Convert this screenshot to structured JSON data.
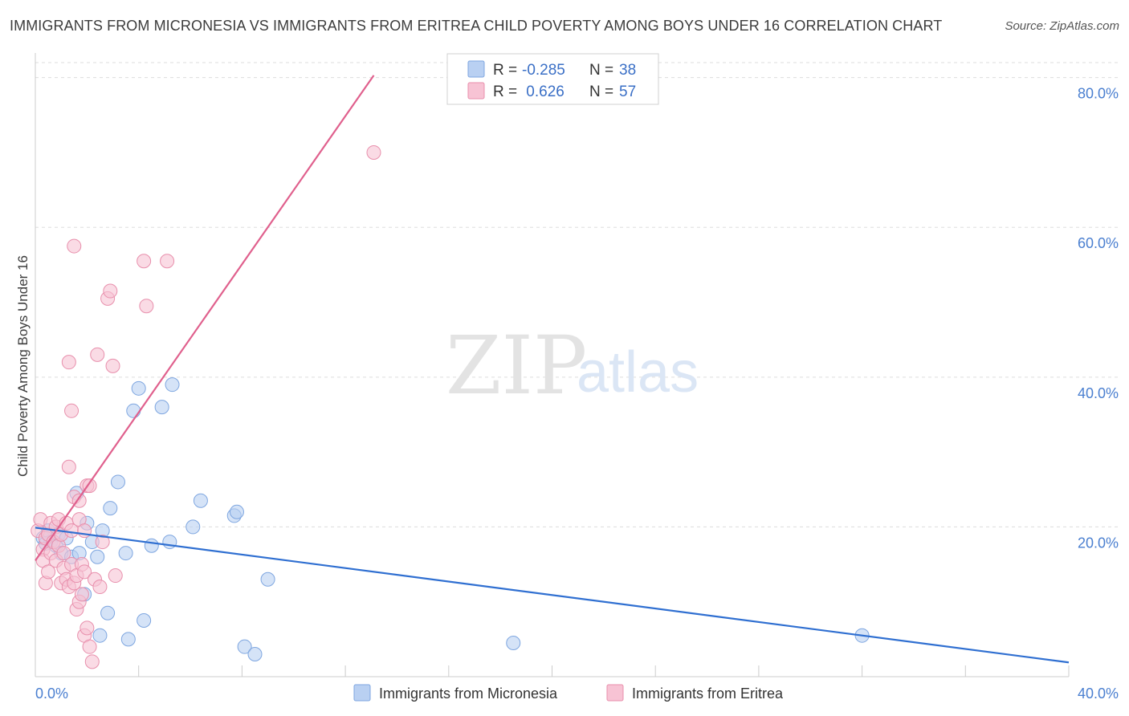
{
  "title": "IMMIGRANTS FROM MICRONESIA VS IMMIGRANTS FROM ERITREA CHILD POVERTY AMONG BOYS UNDER 16 CORRELATION CHART",
  "source": "Source: ZipAtlas.com",
  "watermark": {
    "zip": "ZIP",
    "atlas": "atlas"
  },
  "colors": {
    "micronesia_fill": "#b9d0f2",
    "micronesia_stroke": "#7ea6e0",
    "micronesia_line": "#2f6fd1",
    "eritrea_fill": "#f7c3d4",
    "eritrea_stroke": "#e88fac",
    "eritrea_line": "#e0608d",
    "grid": "#dddddd",
    "tick_label": "#4a7fd0"
  },
  "legend": {
    "rows": [
      {
        "r_label": "R =",
        "r_value": "-0.285",
        "n_label": "N =",
        "n_value": "38"
      },
      {
        "r_label": "R =",
        "r_value": " 0.626",
        "n_label": "N =",
        "n_value": "57"
      }
    ]
  },
  "chart_data": {
    "type": "scatter",
    "xlabel": "",
    "ylabel": "Child Poverty Among Boys Under 16",
    "xlim": [
      0,
      40
    ],
    "ylim": [
      0,
      82
    ],
    "x_tick_labels": [
      {
        "value": 0,
        "label": "0.0%"
      },
      {
        "value": 40,
        "label": "40.0%"
      }
    ],
    "y_tick_labels": [
      {
        "value": 20,
        "label": "20.0%"
      },
      {
        "value": 40,
        "label": "40.0%"
      },
      {
        "value": 60,
        "label": "60.0%"
      },
      {
        "value": 80,
        "label": "80.0%"
      }
    ],
    "grid": true,
    "legend_position": "top-center",
    "series": [
      {
        "name": "Immigrants from Micronesia",
        "points": [
          [
            0.3,
            18.5
          ],
          [
            0.5,
            19.5
          ],
          [
            0.6,
            18.0
          ],
          [
            0.8,
            17.5
          ],
          [
            0.9,
            19.0
          ],
          [
            1.0,
            16.5
          ],
          [
            1.2,
            18.5
          ],
          [
            1.4,
            16.0
          ],
          [
            1.6,
            24.5
          ],
          [
            1.7,
            16.5
          ],
          [
            1.9,
            11.0
          ],
          [
            2.0,
            20.5
          ],
          [
            2.2,
            18.0
          ],
          [
            2.4,
            16.0
          ],
          [
            2.5,
            5.5
          ],
          [
            2.6,
            19.5
          ],
          [
            2.8,
            8.5
          ],
          [
            2.9,
            22.5
          ],
          [
            3.2,
            26.0
          ],
          [
            3.5,
            16.5
          ],
          [
            3.6,
            5.0
          ],
          [
            3.8,
            35.5
          ],
          [
            4.0,
            38.5
          ],
          [
            4.2,
            7.5
          ],
          [
            4.5,
            17.5
          ],
          [
            4.9,
            36.0
          ],
          [
            5.2,
            18.0
          ],
          [
            5.3,
            39.0
          ],
          [
            6.1,
            20.0
          ],
          [
            6.4,
            23.5
          ],
          [
            7.7,
            21.5
          ],
          [
            7.8,
            22.0
          ],
          [
            8.1,
            4.0
          ],
          [
            8.5,
            3.0
          ],
          [
            9.0,
            13.0
          ],
          [
            18.5,
            4.5
          ],
          [
            32.0,
            5.5
          ],
          [
            0.4,
            17.8
          ]
        ]
      },
      {
        "name": "Immigrants from Eritrea",
        "points": [
          [
            0.1,
            19.5
          ],
          [
            0.2,
            21.0
          ],
          [
            0.3,
            17.0
          ],
          [
            0.3,
            15.5
          ],
          [
            0.4,
            18.5
          ],
          [
            0.4,
            12.5
          ],
          [
            0.5,
            14.0
          ],
          [
            0.5,
            19.0
          ],
          [
            0.6,
            16.5
          ],
          [
            0.6,
            20.5
          ],
          [
            0.7,
            18.0
          ],
          [
            0.8,
            20.0
          ],
          [
            0.8,
            15.5
          ],
          [
            0.9,
            21.0
          ],
          [
            0.9,
            17.5
          ],
          [
            1.0,
            19.0
          ],
          [
            1.0,
            12.5
          ],
          [
            1.1,
            14.5
          ],
          [
            1.1,
            16.5
          ],
          [
            1.2,
            20.5
          ],
          [
            1.2,
            13.0
          ],
          [
            1.3,
            28.0
          ],
          [
            1.3,
            12.0
          ],
          [
            1.4,
            19.5
          ],
          [
            1.4,
            15.0
          ],
          [
            1.5,
            24.0
          ],
          [
            1.5,
            12.5
          ],
          [
            1.6,
            9.0
          ],
          [
            1.6,
            13.5
          ],
          [
            1.7,
            23.5
          ],
          [
            1.7,
            10.0
          ],
          [
            1.7,
            21.0
          ],
          [
            1.8,
            11.0
          ],
          [
            1.8,
            15.0
          ],
          [
            1.9,
            14.0
          ],
          [
            1.9,
            19.5
          ],
          [
            2.0,
            25.5
          ],
          [
            2.1,
            25.5
          ],
          [
            1.3,
            42.0
          ],
          [
            1.4,
            35.5
          ],
          [
            1.5,
            57.5
          ],
          [
            1.9,
            5.5
          ],
          [
            2.0,
            6.5
          ],
          [
            2.1,
            4.0
          ],
          [
            2.2,
            2.0
          ],
          [
            2.3,
            13.0
          ],
          [
            2.4,
            43.0
          ],
          [
            2.5,
            12.0
          ],
          [
            2.6,
            18.0
          ],
          [
            2.8,
            50.5
          ],
          [
            2.9,
            51.5
          ],
          [
            3.0,
            41.5
          ],
          [
            3.1,
            13.5
          ],
          [
            4.2,
            55.5
          ],
          [
            4.3,
            49.5
          ],
          [
            5.1,
            55.5
          ],
          [
            13.1,
            70.0
          ]
        ]
      }
    ],
    "trendlines": [
      {
        "series": "Immigrants from Micronesia",
        "x": [
          0,
          40
        ],
        "y": [
          19.9,
          1.9
        ]
      },
      {
        "series": "Immigrants from Eritrea",
        "x": [
          0,
          13.1
        ],
        "y": [
          15.5,
          80.3
        ]
      }
    ]
  }
}
